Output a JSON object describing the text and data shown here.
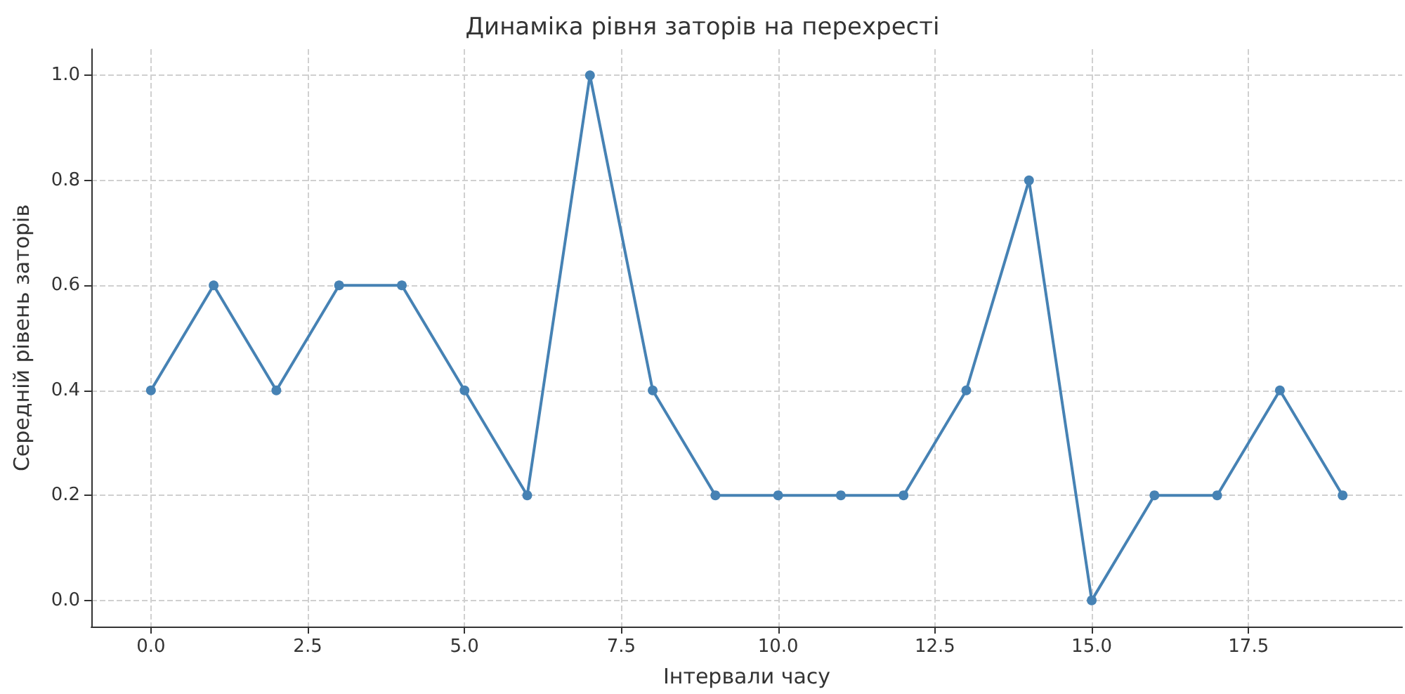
{
  "chart_data": {
    "type": "line",
    "title": "Динаміка рівня заторів на перехресті",
    "xlabel": "Інтервали часу",
    "ylabel": "Середній рівень заторів",
    "x": [
      0,
      1,
      2,
      3,
      4,
      5,
      6,
      7,
      8,
      9,
      10,
      11,
      12,
      13,
      14,
      15,
      16,
      17,
      18,
      19
    ],
    "series": [
      {
        "color": "#4682b4",
        "values": [
          0.4,
          0.6,
          0.4,
          0.6,
          0.6,
          0.4,
          0.2,
          1.0,
          0.4,
          0.2,
          0.2,
          0.2,
          0.2,
          0.4,
          0.8,
          0.0,
          0.2,
          0.2,
          0.4,
          0.2
        ]
      }
    ],
    "xlim": [
      -0.95,
      19.95
    ],
    "xticks": [
      {
        "value": 0,
        "label": "0.0"
      },
      {
        "value": 2.5,
        "label": "2.5"
      },
      {
        "value": 5,
        "label": "5.0"
      },
      {
        "value": 7.5,
        "label": "7.5"
      },
      {
        "value": 10,
        "label": "10.0"
      },
      {
        "value": 12.5,
        "label": "12.5"
      },
      {
        "value": 15,
        "label": "15.0"
      },
      {
        "value": 17.5,
        "label": "17.5"
      }
    ],
    "ylim": [
      -0.05,
      1.05
    ],
    "yticks": [
      {
        "value": 0,
        "label": "0.0"
      },
      {
        "value": 0.2,
        "label": "0.2"
      },
      {
        "value": 0.4,
        "label": "0.4"
      },
      {
        "value": 0.6,
        "label": "0.6"
      },
      {
        "value": 0.8,
        "label": "0.8"
      },
      {
        "value": 1.0,
        "label": "1.0"
      }
    ],
    "grid": true,
    "marker": "circle",
    "line_style": "solid"
  }
}
